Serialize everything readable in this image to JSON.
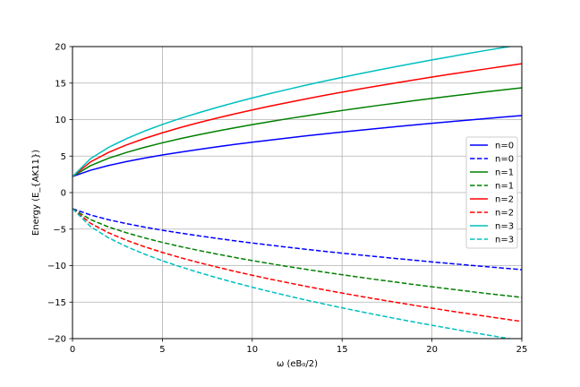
{
  "chart_data": {
    "type": "line",
    "xlabel": "ω (eB₀/2)",
    "ylabel": "Energy (E_{AK11})",
    "xlim": [
      0,
      25
    ],
    "ylim": [
      -20,
      20
    ],
    "xticks": [
      0,
      5,
      10,
      15,
      20,
      25
    ],
    "yticks": [
      -20,
      -15,
      -10,
      -5,
      0,
      5,
      10,
      15,
      20
    ],
    "grid": true,
    "legend_position": "center-right",
    "sample_x": [
      0,
      1,
      2,
      3,
      4,
      5,
      6,
      7,
      8,
      9,
      10,
      11,
      12,
      13,
      14,
      15,
      16,
      17,
      18,
      19,
      20,
      21,
      22,
      23,
      24,
      25
    ],
    "series": [
      {
        "name": "n=0",
        "color": "#0000ff",
        "dash": "solid",
        "values": [
          2.2,
          3.06,
          3.71,
          4.25,
          4.72,
          5.15,
          5.54,
          5.91,
          6.26,
          6.59,
          6.9,
          7.2,
          7.49,
          7.77,
          8.04,
          8.3,
          8.55,
          8.79,
          9.03,
          9.26,
          9.49,
          9.71,
          9.93,
          10.14,
          10.35,
          10.55
        ]
      },
      {
        "name": "n=0",
        "color": "#0000ff",
        "dash": "dashed",
        "values": [
          -2.2,
          -3.06,
          -3.71,
          -4.25,
          -4.72,
          -5.15,
          -5.54,
          -5.91,
          -6.26,
          -6.59,
          -6.9,
          -7.2,
          -7.49,
          -7.77,
          -8.04,
          -8.3,
          -8.55,
          -8.79,
          -9.03,
          -9.26,
          -9.49,
          -9.71,
          -9.93,
          -10.14,
          -10.35,
          -10.55
        ]
      },
      {
        "name": "n=1",
        "color": "#008000",
        "dash": "solid",
        "values": [
          2.2,
          3.69,
          4.7,
          5.5,
          6.2,
          6.82,
          7.39,
          7.91,
          8.4,
          8.87,
          9.31,
          9.73,
          10.13,
          10.51,
          10.89,
          11.25,
          11.6,
          11.94,
          12.26,
          12.59,
          12.9,
          13.21,
          13.5,
          13.8,
          14.08,
          14.36
        ]
      },
      {
        "name": "n=1",
        "color": "#008000",
        "dash": "dashed",
        "values": [
          -2.2,
          -3.69,
          -4.7,
          -5.5,
          -6.2,
          -6.82,
          -7.39,
          -7.91,
          -8.4,
          -8.87,
          -9.31,
          -9.73,
          -10.13,
          -10.51,
          -10.89,
          -11.25,
          -11.6,
          -11.94,
          -12.26,
          -12.59,
          -12.9,
          -13.21,
          -13.5,
          -13.8,
          -14.08,
          -14.36
        ]
      },
      {
        "name": "n=2",
        "color": "#ff0000",
        "dash": "solid",
        "values": [
          2.2,
          4.2,
          5.5,
          6.53,
          7.41,
          8.19,
          8.91,
          9.57,
          10.18,
          10.77,
          11.32,
          11.85,
          12.35,
          12.84,
          13.31,
          13.76,
          14.2,
          14.62,
          15.03,
          15.43,
          15.83,
          16.21,
          16.58,
          16.94,
          17.3,
          17.65
        ]
      },
      {
        "name": "n=2",
        "color": "#ff0000",
        "dash": "dashed",
        "values": [
          -2.2,
          -4.2,
          -5.5,
          -6.53,
          -7.41,
          -8.19,
          -8.91,
          -9.57,
          -10.18,
          -10.77,
          -11.32,
          -11.85,
          -12.35,
          -12.84,
          -13.31,
          -13.76,
          -14.2,
          -14.62,
          -15.03,
          -15.43,
          -15.83,
          -16.21,
          -16.58,
          -16.94,
          -17.3,
          -17.65
        ]
      },
      {
        "name": "n=3",
        "color": "#00bfbf",
        "dash": "solid",
        "values": [
          2.2,
          4.65,
          6.18,
          7.39,
          8.42,
          9.33,
          10.16,
          10.92,
          11.64,
          12.32,
          12.96,
          13.57,
          14.15,
          14.72,
          15.26,
          15.78,
          16.29,
          16.78,
          17.26,
          17.72,
          18.17,
          18.61,
          19.05,
          19.47,
          19.88,
          20.28
        ]
      },
      {
        "name": "n=3",
        "color": "#00bfbf",
        "dash": "dashed",
        "values": [
          -2.2,
          -4.65,
          -6.18,
          -7.39,
          -8.42,
          -9.33,
          -10.16,
          -10.92,
          -11.64,
          -12.32,
          -12.96,
          -13.57,
          -14.15,
          -14.72,
          -15.26,
          -15.78,
          -16.29,
          -16.78,
          -17.26,
          -17.72,
          -18.17,
          -18.61,
          -19.05,
          -19.47,
          -19.88,
          -20.28
        ]
      }
    ]
  }
}
